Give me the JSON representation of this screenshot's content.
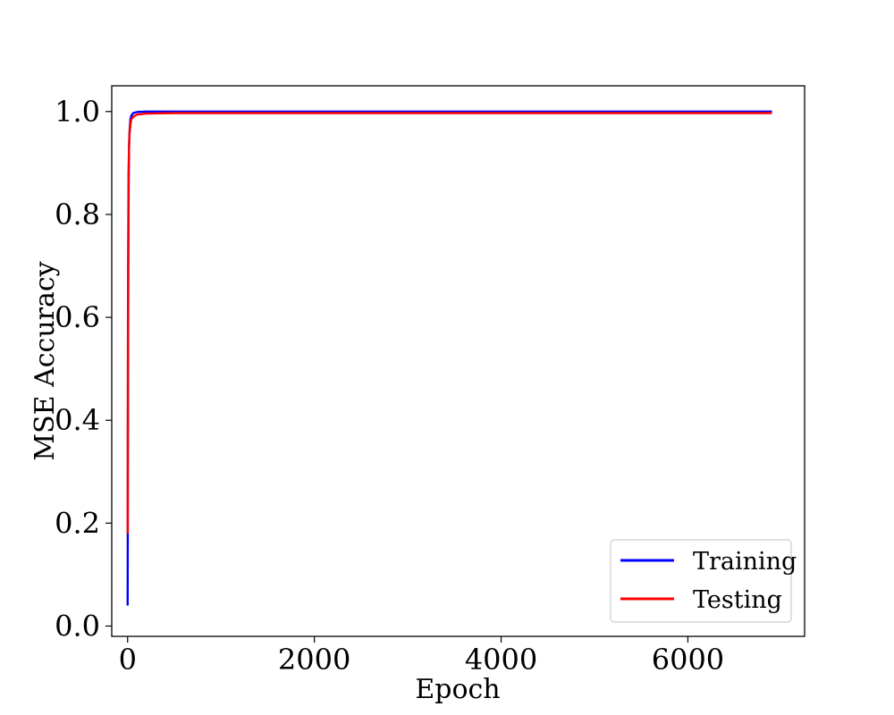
{
  "chart_data": {
    "type": "line",
    "title": "",
    "xlabel": "Epoch",
    "ylabel": "MSE Accuracy",
    "xlim": [
      -170,
      7250
    ],
    "ylim": [
      -0.02,
      1.05
    ],
    "xticks": [
      0,
      2000,
      4000,
      6000
    ],
    "xtick_labels": [
      "0",
      "2000",
      "4000",
      "6000"
    ],
    "yticks": [
      0.0,
      0.2,
      0.4,
      0.6,
      0.8,
      1.0
    ],
    "ytick_labels": [
      "0.0",
      "0.2",
      "0.4",
      "0.6",
      "0.8",
      "1.0"
    ],
    "grid": false,
    "legend_position": "lower-right",
    "series": [
      {
        "name": "Training",
        "color": "#0000ff",
        "x": [
          0,
          2,
          5,
          10,
          15,
          20,
          30,
          40,
          60,
          100,
          200,
          500,
          1000,
          3000,
          6900
        ],
        "y": [
          0.04,
          0.19,
          0.55,
          0.82,
          0.93,
          0.96,
          0.985,
          0.992,
          0.997,
          0.999,
          1.0,
          1.0,
          1.0,
          1.0,
          1.0
        ]
      },
      {
        "name": "Testing",
        "color": "#ff0000",
        "x": [
          0,
          2,
          5,
          10,
          15,
          20,
          30,
          40,
          60,
          100,
          200,
          500,
          1000,
          3000,
          6900
        ],
        "y": [
          0.18,
          0.45,
          0.7,
          0.88,
          0.93,
          0.955,
          0.975,
          0.985,
          0.99,
          0.994,
          0.996,
          0.997,
          0.997,
          0.997,
          0.997
        ]
      }
    ]
  }
}
